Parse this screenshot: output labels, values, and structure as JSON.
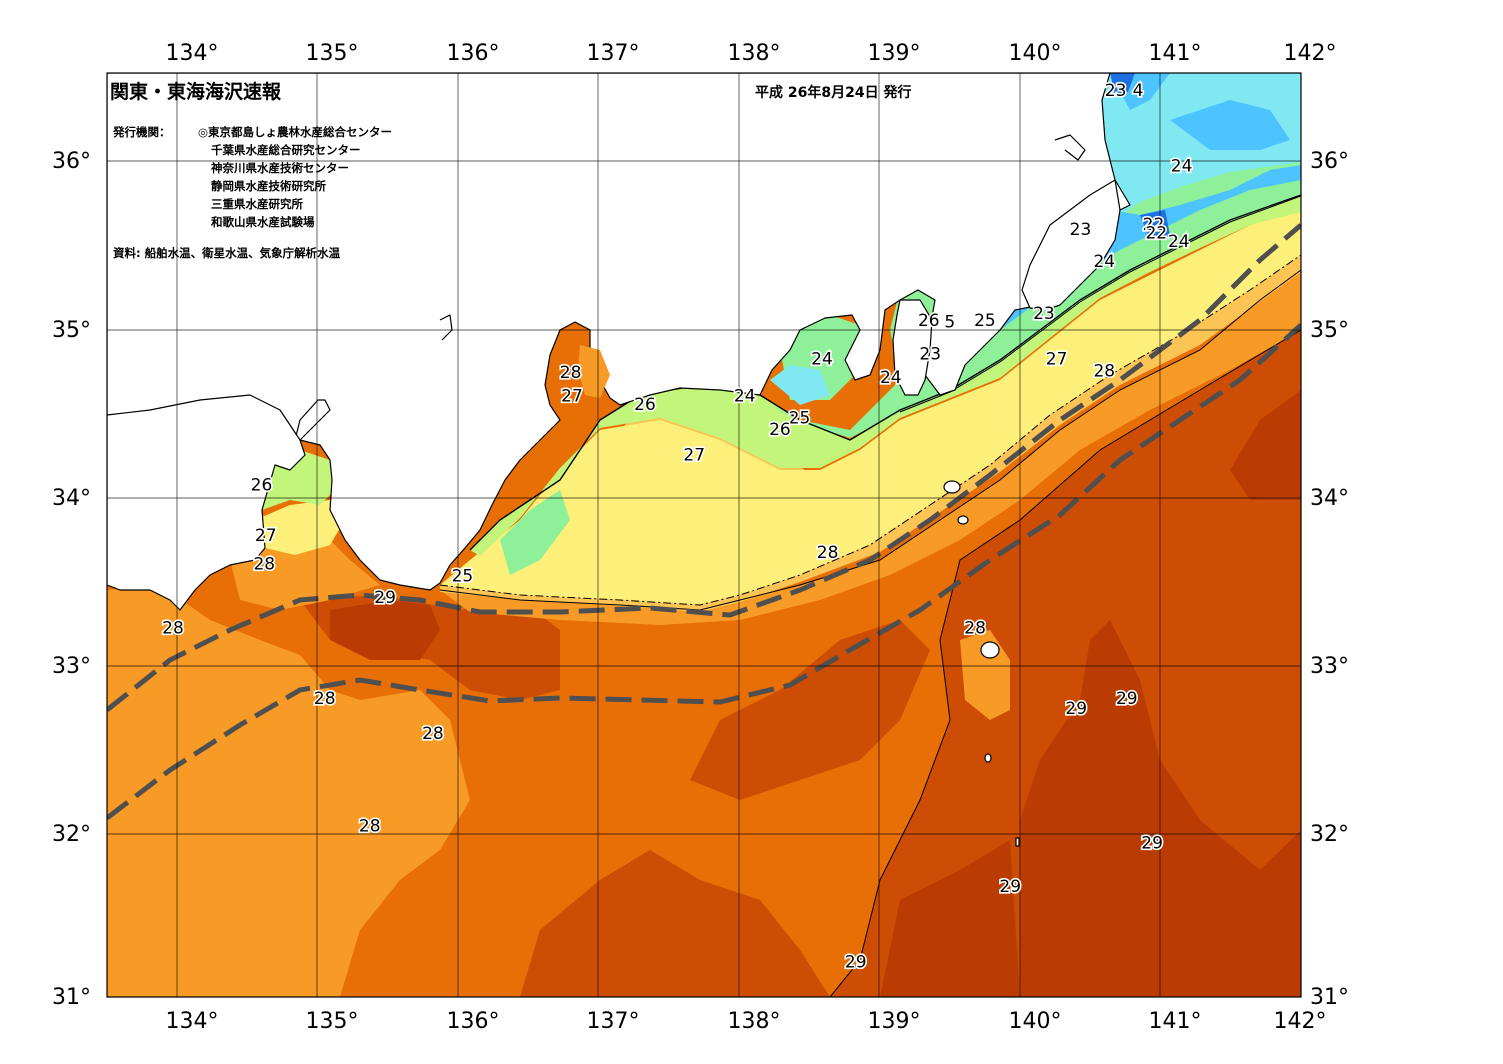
{
  "title": "関東・東海海沢速報",
  "issue_date": "平成 26年8月24日 発行",
  "publisher_label": "発行機関：",
  "publishers": [
    "◎東京都島しょ農林水産総合センター",
    "千葉県水産総合研究センター",
    "神奈川県水産技術センター",
    "静岡県水産技術研究所",
    "三重県水産研究所",
    "和歌山県水産試験場"
  ],
  "source": "資料: 船舶水温、衛星水温、気象庁解析水温",
  "lon_labels": [
    "134°",
    "135°",
    "136°",
    "137°",
    "138°",
    "139°",
    "140°",
    "141°",
    "142°"
  ],
  "lat_labels": [
    "36°",
    "35°",
    "34°",
    "33°",
    "32°",
    "31°"
  ],
  "contour_labels": [
    {
      "text": "23",
      "lon": 140.68,
      "lat": 36.4
    },
    {
      "text": "4",
      "lon": 140.84,
      "lat": 36.4
    },
    {
      "text": "24",
      "lon": 141.15,
      "lat": 35.95
    },
    {
      "text": "23",
      "lon": 140.43,
      "lat": 35.57
    },
    {
      "text": "22",
      "lon": 140.95,
      "lat": 35.6
    },
    {
      "text": "22",
      "lon": 140.97,
      "lat": 35.55
    },
    {
      "text": "24",
      "lon": 141.13,
      "lat": 35.5
    },
    {
      "text": "24",
      "lon": 140.6,
      "lat": 35.38
    },
    {
      "text": "23",
      "lon": 140.17,
      "lat": 35.07
    },
    {
      "text": "26",
      "lon": 139.35,
      "lat": 35.03
    },
    {
      "text": "5",
      "lon": 139.5,
      "lat": 35.02
    },
    {
      "text": "25",
      "lon": 139.75,
      "lat": 35.03
    },
    {
      "text": "23",
      "lon": 139.36,
      "lat": 34.83
    },
    {
      "text": "27",
      "lon": 140.26,
      "lat": 34.8
    },
    {
      "text": "28",
      "lon": 140.6,
      "lat": 34.73
    },
    {
      "text": "24",
      "lon": 138.59,
      "lat": 34.8
    },
    {
      "text": "24",
      "lon": 139.08,
      "lat": 34.69
    },
    {
      "text": "28",
      "lon": 136.8,
      "lat": 34.72
    },
    {
      "text": "27",
      "lon": 136.81,
      "lat": 34.58
    },
    {
      "text": "26",
      "lon": 137.33,
      "lat": 34.53
    },
    {
      "text": "24",
      "lon": 138.04,
      "lat": 34.58
    },
    {
      "text": "25",
      "lon": 138.43,
      "lat": 34.45
    },
    {
      "text": "26",
      "lon": 138.29,
      "lat": 34.38
    },
    {
      "text": "27",
      "lon": 137.68,
      "lat": 34.23
    },
    {
      "text": "26",
      "lon": 134.6,
      "lat": 34.05
    },
    {
      "text": "27",
      "lon": 134.63,
      "lat": 33.75
    },
    {
      "text": "28",
      "lon": 134.62,
      "lat": 33.58
    },
    {
      "text": "25",
      "lon": 136.03,
      "lat": 33.51
    },
    {
      "text": "28",
      "lon": 138.63,
      "lat": 33.65
    },
    {
      "text": "29",
      "lon": 135.48,
      "lat": 33.38
    },
    {
      "text": "28",
      "lon": 133.97,
      "lat": 33.2
    },
    {
      "text": "28",
      "lon": 139.68,
      "lat": 33.2
    },
    {
      "text": "28",
      "lon": 135.05,
      "lat": 32.78
    },
    {
      "text": "28",
      "lon": 135.82,
      "lat": 32.57
    },
    {
      "text": "29",
      "lon": 140.4,
      "lat": 32.72
    },
    {
      "text": "29",
      "lon": 140.76,
      "lat": 32.78
    },
    {
      "text": "28",
      "lon": 135.37,
      "lat": 32.02
    },
    {
      "text": "29",
      "lon": 140.94,
      "lat": 31.92
    },
    {
      "text": "29",
      "lon": 139.93,
      "lat": 31.66
    },
    {
      "text": "29",
      "lon": 138.83,
      "lat": 31.21
    }
  ],
  "colors": {
    "t22": "#1e6fe0",
    "t23": "#4dc3ff",
    "t24": "#7fe8f0",
    "t25": "#8ef098",
    "t26": "#c2f57a",
    "t27": "#fdf07a",
    "t27_5": "#fcc454",
    "t28": "#f79a26",
    "t28_5": "#e86e06",
    "t29": "#cc4d03",
    "t29_5": "#bb3c02",
    "land": "#ffffff",
    "kuroshio": "#4f4f4f"
  }
}
